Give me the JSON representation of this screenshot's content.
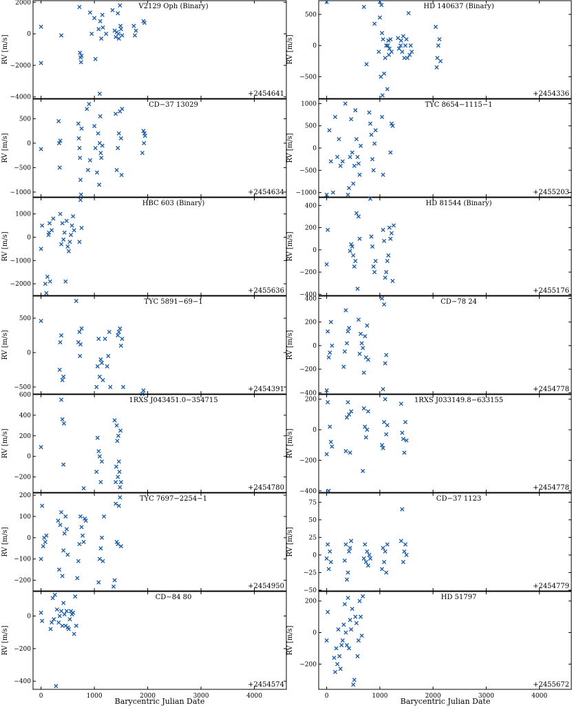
{
  "figure": {
    "shared_xlabel": "Barycentric Julian Date",
    "shared_ylabel": "RV [m/s]",
    "marker_color": "#1f5fa8",
    "x_ticks": [
      0,
      1000,
      2000,
      3000,
      4000
    ],
    "x_tick_labels": [
      "0",
      "1000",
      "2000",
      "3000",
      "4000"
    ],
    "xlim": [
      -150,
      4600
    ]
  },
  "chart_data": [
    {
      "type": "scatter",
      "title": "V2129 Oph (Binary)",
      "offset": "+2454641",
      "ylim": [
        -4100,
        2100
      ],
      "yticks": [
        -4000,
        -2000,
        0,
        2000
      ],
      "ytick_labels": [
        "−4000",
        "−2000",
        "0",
        "2000"
      ],
      "x": [
        0,
        0,
        380,
        720,
        730,
        740,
        750,
        760,
        920,
        950,
        1000,
        1020,
        1080,
        1100,
        1110,
        1130,
        1150,
        1160,
        1220,
        1340,
        1380,
        1400,
        1420,
        1440,
        1450,
        1460,
        1480,
        1490,
        1500,
        1520,
        1740,
        1760,
        1780,
        1920,
        1940
      ],
      "y": [
        450,
        -1850,
        -100,
        1700,
        -1200,
        -1500,
        -1800,
        -1400,
        1350,
        0,
        1000,
        -1600,
        300,
        -3800,
        800,
        -300,
        1200,
        400,
        0,
        1500,
        200,
        -200,
        100,
        1300,
        0,
        -300,
        1800,
        500,
        300,
        -100,
        500,
        -100,
        200,
        800,
        700
      ]
    },
    {
      "type": "scatter",
      "title": "HD 140637 (Binary)",
      "offset": "+2454336",
      "ylim": [
        -850,
        720
      ],
      "yticks": [
        -500,
        0,
        500
      ],
      "ytick_labels": [
        "−500",
        "0",
        "500"
      ],
      "x": [
        0,
        700,
        750,
        900,
        980,
        1000,
        1000,
        1020,
        1030,
        1040,
        1050,
        1060,
        1080,
        1100,
        1120,
        1140,
        1150,
        1160,
        1170,
        1180,
        1200,
        1220,
        1340,
        1360,
        1390,
        1400,
        1420,
        1440,
        1460,
        1480,
        1500,
        1520,
        1540,
        1560,
        1580,
        1600,
        2050,
        2070,
        2080,
        2100,
        2120,
        2140
      ],
      "y": [
        700,
        620,
        -300,
        350,
        -100,
        700,
        450,
        -500,
        650,
        200,
        -800,
        100,
        -450,
        -200,
        0,
        -700,
        0,
        80,
        -150,
        -50,
        100,
        -100,
        120,
        -50,
        0,
        80,
        -100,
        150,
        -200,
        0,
        100,
        -200,
        520,
        -150,
        0,
        -100,
        300,
        -350,
        -200,
        0,
        100,
        -250
      ]
    },
    {
      "type": "scatter",
      "title": "CD−37 13029",
      "offset": "+2454634",
      "ylim": [
        -1100,
        900
      ],
      "yticks": [
        -1000,
        -500,
        0,
        500
      ],
      "ytick_labels": [
        "−1000",
        "−500",
        "0",
        "500"
      ],
      "x": [
        0,
        330,
        340,
        350,
        360,
        700,
        710,
        720,
        730,
        740,
        750,
        760,
        860,
        880,
        900,
        920,
        1000,
        1020,
        1050,
        1070,
        1090,
        1100,
        1110,
        1120,
        1130,
        1150,
        1400,
        1420,
        1440,
        1460,
        1480,
        1500,
        1510,
        1520,
        1900,
        1920,
        1930,
        1940,
        1950
      ],
      "y": [
        -120,
        450,
        0,
        -500,
        50,
        400,
        100,
        -100,
        -300,
        -750,
        -1050,
        300,
        700,
        -550,
        800,
        -350,
        350,
        -100,
        -600,
        200,
        -850,
        0,
        550,
        -200,
        -300,
        -50,
        600,
        -550,
        -100,
        200,
        650,
        100,
        -650,
        700,
        -200,
        250,
        0,
        200,
        150
      ]
    },
    {
      "type": "scatter",
      "title": "TYC 8654−1115−1",
      "offset": "+2455203",
      "ylim": [
        -1100,
        1100
      ],
      "yticks": [
        -1000,
        -500,
        0,
        500,
        1000
      ],
      "ytick_labels": [
        "−1000",
        "−500",
        "0",
        "500",
        "1000"
      ],
      "x": [
        0,
        50,
        80,
        120,
        160,
        200,
        230,
        260,
        300,
        350,
        400,
        420,
        440,
        460,
        480,
        500,
        520,
        540,
        560,
        580,
        600,
        620,
        640,
        800,
        820,
        840,
        860,
        880,
        900,
        920,
        1040,
        1060,
        1200,
        1220,
        1240
      ],
      "y": [
        -1050,
        400,
        -300,
        -1000,
        700,
        -200,
        200,
        -400,
        -300,
        1000,
        -1050,
        -900,
        -200,
        650,
        -100,
        -800,
        -400,
        850,
        200,
        -200,
        -350,
        -600,
        50,
        800,
        550,
        300,
        -250,
        -500,
        100,
        400,
        700,
        -600,
        -100,
        550,
        500
      ]
    },
    {
      "type": "scatter",
      "title": "HBC 603 (Binary)",
      "offset": "+2455636",
      "ylim": [
        -2500,
        1700
      ],
      "yticks": [
        -2000,
        -1000,
        0,
        1000
      ],
      "ytick_labels": [
        "−2000",
        "−1000",
        "0",
        "1000"
      ],
      "x": [
        0,
        20,
        80,
        100,
        120,
        140,
        150,
        160,
        170,
        200,
        230,
        360,
        380,
        400,
        420,
        440,
        460,
        480,
        500,
        520,
        540,
        560,
        580,
        600,
        620,
        720,
        740,
        760
      ],
      "y": [
        -500,
        500,
        -2000,
        -2400,
        -1700,
        100,
        200,
        600,
        -1900,
        300,
        800,
        1000,
        -300,
        600,
        -100,
        200,
        -1900,
        700,
        -400,
        -600,
        -200,
        100,
        500,
        900,
        300,
        -200,
        1600,
        400
      ]
    },
    {
      "type": "scatter",
      "title": "HD 81544 (Binary)",
      "offset": "+2455176",
      "ylim": [
        -410,
        470
      ],
      "yticks": [
        -400,
        -200,
        0,
        200,
        400
      ],
      "ytick_labels": [
        "−400",
        "−200",
        "0",
        "200",
        "400"
      ],
      "x": [
        0,
        20,
        440,
        460,
        480,
        500,
        520,
        540,
        560,
        580,
        600,
        620,
        820,
        840,
        860,
        880,
        900,
        920,
        1060,
        1080,
        1100,
        1120,
        1140,
        1160,
        1180,
        1200,
        1220,
        1240,
        1260
      ],
      "y": [
        -130,
        180,
        -10,
        50,
        30,
        -50,
        -150,
        -100,
        330,
        -350,
        300,
        100,
        460,
        120,
        30,
        -150,
        -200,
        -100,
        180,
        80,
        -250,
        -200,
        -100,
        -50,
        200,
        100,
        150,
        -280,
        220
      ]
    },
    {
      "type": "scatter",
      "title": "TYC 5891−69−1",
      "offset": "+2454391",
      "ylim": [
        -600,
        820
      ],
      "yticks": [
        -500,
        0,
        500
      ],
      "ytick_labels": [
        "−500",
        "0",
        "500"
      ],
      "x": [
        0,
        350,
        360,
        380,
        400,
        420,
        660,
        700,
        720,
        730,
        740,
        760,
        1040,
        1060,
        1080,
        1100,
        1120,
        1140,
        1160,
        1200,
        1240,
        1260,
        1280,
        1300,
        1440,
        1460,
        1480,
        1500,
        1520,
        1540,
        1560,
        1900,
        1920
      ],
      "y": [
        460,
        -250,
        150,
        250,
        -400,
        -350,
        750,
        150,
        300,
        -50,
        120,
        350,
        -500,
        -200,
        200,
        -350,
        -100,
        -150,
        -400,
        200,
        -200,
        -50,
        300,
        -500,
        250,
        300,
        350,
        100,
        200,
        -500,
        -650,
        -600,
        -550
      ]
    },
    {
      "type": "scatter",
      "title": "CD−78 24",
      "offset": "+2454778",
      "ylim": [
        -410,
        420
      ],
      "yticks": [
        -400,
        -200,
        0,
        200,
        400
      ],
      "ytick_labels": [
        "−400",
        "−200",
        "0",
        "200",
        "400"
      ],
      "x": [
        0,
        20,
        40,
        60,
        80,
        100,
        320,
        340,
        360,
        380,
        400,
        420,
        600,
        620,
        640,
        660,
        680,
        700,
        720,
        740,
        760,
        780,
        1040,
        1060,
        1080,
        1100,
        1120
      ],
      "y": [
        -380,
        120,
        -100,
        -60,
        200,
        0,
        -180,
        -50,
        300,
        20,
        120,
        150,
        220,
        -70,
        100,
        20,
        -20,
        -230,
        80,
        -100,
        170,
        -120,
        400,
        -370,
        350,
        -150,
        -80
      ]
    },
    {
      "type": "scatter",
      "title": "1RXS J043451.0−354715",
      "offset": "+2454780",
      "ylim": [
        -350,
        600
      ],
      "yticks": [
        -200,
        0,
        200,
        400,
        600
      ],
      "ytick_labels": [
        "−200",
        "0",
        "200",
        "400",
        "600"
      ],
      "x": [
        0,
        380,
        400,
        420,
        430,
        800,
        1040,
        1060,
        1080,
        1100,
        1120,
        1140,
        1380,
        1400,
        1410,
        1420,
        1430,
        1440,
        1450,
        1460,
        1470,
        1480,
        1490,
        1500
      ],
      "y": [
        90,
        550,
        360,
        -80,
        320,
        -310,
        -150,
        180,
        50,
        0,
        -250,
        -50,
        350,
        -250,
        -100,
        300,
        150,
        -200,
        200,
        -50,
        -150,
        -300,
        250,
        -250
      ]
    },
    {
      "type": "scatter",
      "title": "1RXS J033149.8−633155",
      "offset": "+2454778",
      "ylim": [
        -410,
        230
      ],
      "yticks": [
        -400,
        -200,
        0,
        200
      ],
      "ytick_labels": [
        "−400",
        "−200",
        "0",
        "200"
      ],
      "x": [
        0,
        20,
        40,
        60,
        80,
        100,
        360,
        380,
        400,
        420,
        440,
        460,
        680,
        700,
        720,
        740,
        760,
        780,
        1040,
        1060,
        1080,
        1100,
        1120,
        1140,
        1400,
        1420,
        1440,
        1460,
        1480,
        1500
      ],
      "y": [
        -160,
        180,
        -400,
        20,
        -80,
        -110,
        -140,
        80,
        180,
        100,
        -150,
        120,
        -270,
        140,
        20,
        -50,
        0,
        120,
        -100,
        -120,
        50,
        200,
        -30,
        30,
        170,
        -20,
        -60,
        -150,
        50,
        -70
      ]
    },
    {
      "type": "scatter",
      "title": "TYC 7697−2254−1",
      "offset": "+2454950",
      "ylim": [
        -250,
        210
      ],
      "yticks": [
        -200,
        -100,
        0,
        100,
        200
      ],
      "ytick_labels": [
        "−200",
        "−100",
        "0",
        "100",
        "200"
      ],
      "x": [
        0,
        20,
        40,
        60,
        80,
        100,
        320,
        340,
        360,
        380,
        400,
        420,
        440,
        460,
        480,
        500,
        680,
        700,
        720,
        740,
        760,
        780,
        800,
        820,
        840,
        1080,
        1100,
        1120,
        1140,
        1160,
        1180,
        1360,
        1380,
        1400,
        1420,
        1440,
        1460,
        1480,
        1500
      ],
      "y": [
        -100,
        150,
        -40,
        0,
        -20,
        10,
        80,
        -150,
        60,
        120,
        -180,
        -60,
        20,
        100,
        40,
        -80,
        -190,
        -110,
        -30,
        100,
        50,
        10,
        -20,
        90,
        80,
        -210,
        -100,
        -50,
        0,
        -110,
        100,
        -230,
        -200,
        160,
        -20,
        -30,
        150,
        190,
        -40
      ]
    },
    {
      "type": "scatter",
      "title": "CD−37 1123",
      "offset": "+2454779",
      "ylim": [
        -51,
        88
      ],
      "yticks": [
        -50,
        -25,
        0,
        25,
        50,
        75
      ],
      "ytick_labels": [
        "−50",
        "−25",
        "0",
        "25",
        "50",
        "75"
      ],
      "x": [
        0,
        20,
        40,
        60,
        80,
        340,
        360,
        380,
        400,
        420,
        440,
        460,
        700,
        720,
        740,
        760,
        780,
        800,
        820,
        1040,
        1060,
        1080,
        1100,
        1120,
        1140,
        1400,
        1420,
        1440,
        1460,
        1480,
        1500
      ],
      "y": [
        -5,
        15,
        -20,
        5,
        -10,
        -8,
        15,
        -35,
        -25,
        5,
        10,
        20,
        -5,
        15,
        -10,
        5,
        -15,
        0,
        -5,
        -20,
        10,
        -10,
        5,
        -25,
        15,
        20,
        65,
        -10,
        5,
        15,
        0
      ]
    },
    {
      "type": "scatter",
      "title": "CD−84 80",
      "offset": "+2454574",
      "ylim": [
        -450,
        150
      ],
      "yticks": [
        -400,
        -200,
        0
      ],
      "ytick_labels": [
        "−400",
        "−200",
        "0"
      ],
      "x": [
        0,
        20,
        180,
        200,
        220,
        240,
        260,
        280,
        300,
        330,
        350,
        380,
        400,
        420,
        440,
        460,
        480,
        500,
        520,
        540,
        560,
        580,
        600,
        620,
        640,
        660
      ],
      "y": [
        20,
        -30,
        -80,
        -40,
        110,
        -20,
        130,
        -430,
        40,
        -40,
        0,
        30,
        -60,
        80,
        10,
        -60,
        30,
        -70,
        -80,
        -20,
        30,
        10,
        20,
        -110,
        120,
        -60
      ]
    },
    {
      "type": "scatter",
      "title": "HD 51797",
      "offset": "+2455672",
      "ylim": [
        -360,
        260
      ],
      "yticks": [
        -200,
        0,
        200
      ],
      "ytick_labels": [
        "−200",
        "0",
        "200"
      ],
      "x": [
        0,
        20,
        140,
        160,
        180,
        200,
        220,
        240,
        260,
        280,
        300,
        320,
        340,
        360,
        380,
        400,
        420,
        440,
        460,
        480,
        500,
        520,
        540,
        560,
        580,
        600,
        620,
        640,
        660,
        680
      ],
      "y": [
        -50,
        130,
        -160,
        -250,
        -100,
        -200,
        20,
        -150,
        -230,
        -80,
        -50,
        50,
        180,
        0,
        -80,
        220,
        -100,
        80,
        20,
        150,
        -330,
        -300,
        100,
        60,
        -150,
        -50,
        200,
        100,
        -20,
        230
      ]
    }
  ]
}
